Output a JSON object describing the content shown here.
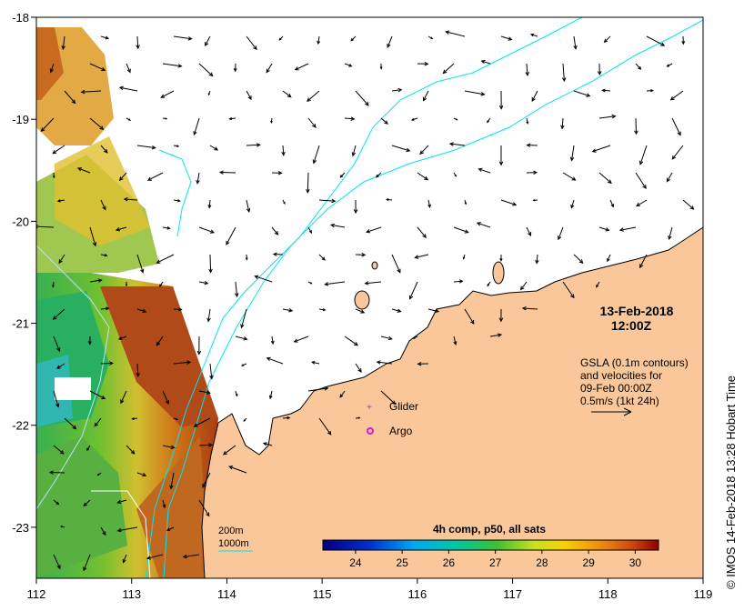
{
  "map": {
    "date": "13-Feb-2018",
    "time": "12:00Z",
    "gsla_info": [
      "GSLA (0.1m contours)",
      "and velocities for",
      "09-Feb 00:00Z",
      "0.5m/s (1kt 24h)"
    ],
    "legend": {
      "glider": "Glider",
      "argo": "Argo",
      "depth_200": "200m",
      "depth_1000": "1000m"
    },
    "colorbar": {
      "title": "4h comp, p50, all sats",
      "ticks": [
        "24",
        "25",
        "26",
        "27",
        "28",
        "29",
        "30"
      ],
      "range": [
        23.3,
        30.5
      ]
    },
    "x_ticks": [
      "112",
      "113",
      "114",
      "115",
      "116",
      "117",
      "118",
      "119"
    ],
    "y_ticks": [
      "-18",
      "-19",
      "-20",
      "-21",
      "-22",
      "-23"
    ],
    "lon_range": [
      112,
      119
    ],
    "lat_range": [
      -23.5,
      -18
    ],
    "credit": "© IMOS 14-Feb-2018 13:28 Hobart Time",
    "colors": {
      "land": "#f9c79a",
      "contour_200": "#00e5ee",
      "contour_1000": "#b7e4ee",
      "glider": "#d020d0",
      "argo": "#d020d0"
    }
  }
}
